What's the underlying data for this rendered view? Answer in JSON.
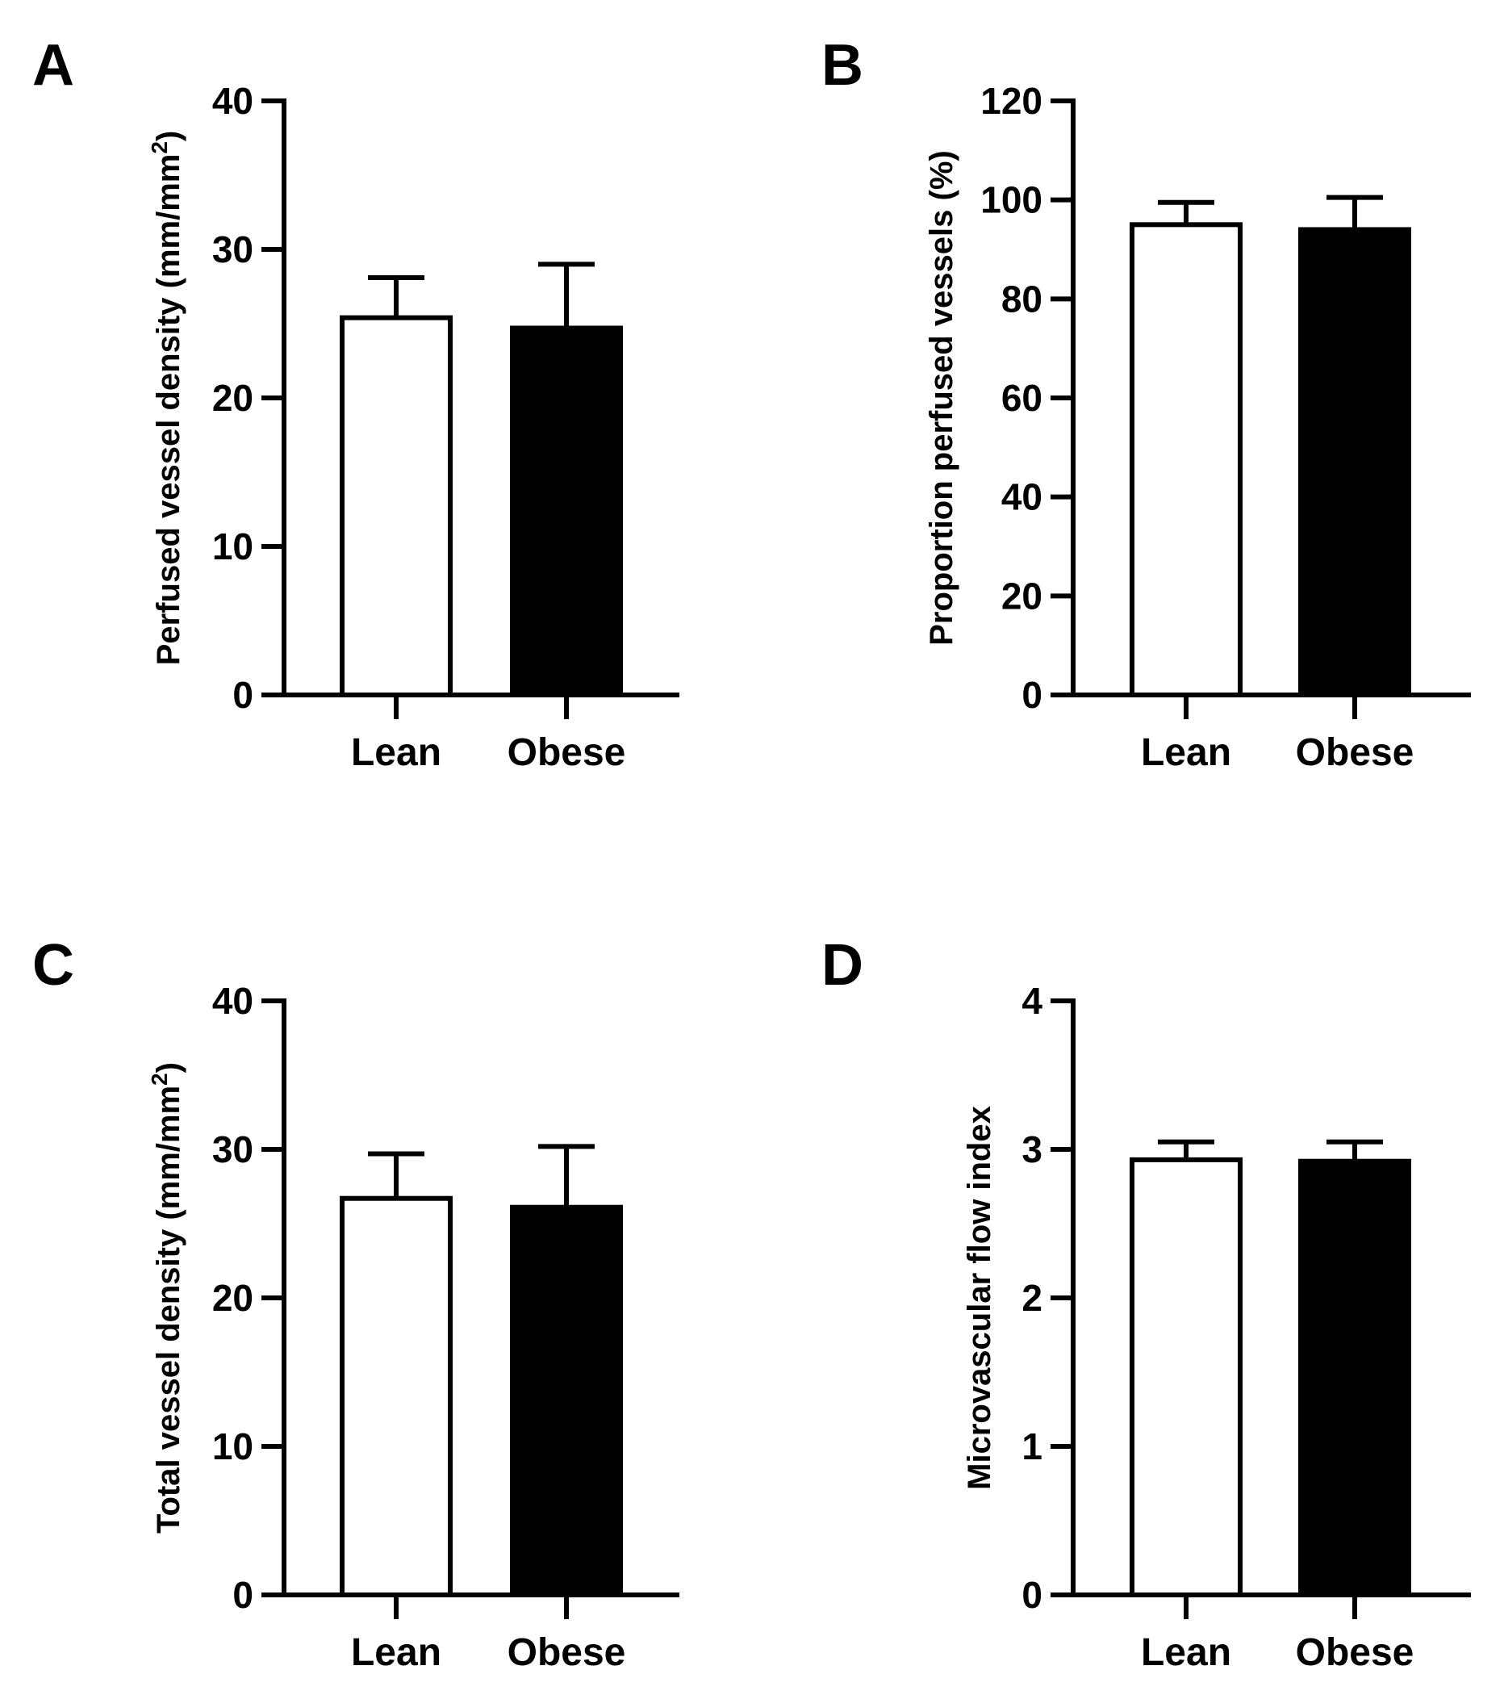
{
  "figure": {
    "panels": [
      {
        "letter": "A",
        "chart_data": {
          "type": "bar",
          "title": "",
          "categories": [
            "Lean",
            "Obese"
          ],
          "values": [
            25.4,
            24.7
          ],
          "errors": [
            2.7,
            4.3
          ],
          "colors": [
            "#ffffff",
            "#000000"
          ],
          "xlabel": "",
          "ylabel": "Perfused vessel density (mm/mm²)",
          "ylabel_main": "Perfused vessel density (mm/mm",
          "ylabel_sup": "2",
          "ylabel_tail": ")",
          "ylim": [
            0,
            40
          ],
          "yticks": [
            "0",
            "10",
            "20",
            "30",
            "40"
          ],
          "grid": false,
          "legend": "none"
        }
      },
      {
        "letter": "B",
        "chart_data": {
          "type": "bar",
          "title": "",
          "categories": [
            "Lean",
            "Obese"
          ],
          "values": [
            95,
            94
          ],
          "errors": [
            4.5,
            6.5
          ],
          "colors": [
            "#ffffff",
            "#000000"
          ],
          "xlabel": "",
          "ylabel": "Proportion perfused vessels (%)",
          "ylabel_main": "Proportion perfused vessels (%)",
          "ylabel_sup": "",
          "ylabel_tail": "",
          "ylim": [
            0,
            120
          ],
          "yticks": [
            "0",
            "20",
            "40",
            "60",
            "80",
            "100",
            "120"
          ],
          "grid": false,
          "legend": "none"
        }
      },
      {
        "letter": "C",
        "chart_data": {
          "type": "bar",
          "title": "",
          "categories": [
            "Lean",
            "Obese"
          ],
          "values": [
            26.7,
            26.1
          ],
          "errors": [
            3.0,
            4.1
          ],
          "colors": [
            "#ffffff",
            "#000000"
          ],
          "xlabel": "",
          "ylabel": "Total vessel density (mm/mm²)",
          "ylabel_main": "Total vessel density (mm/mm",
          "ylabel_sup": "2",
          "ylabel_tail": ")",
          "ylim": [
            0,
            40
          ],
          "yticks": [
            "0",
            "10",
            "20",
            "30",
            "40"
          ],
          "grid": false,
          "legend": "none"
        }
      },
      {
        "letter": "D",
        "chart_data": {
          "type": "bar",
          "title": "",
          "categories": [
            "Lean",
            "Obese"
          ],
          "values": [
            2.93,
            2.92
          ],
          "errors": [
            0.12,
            0.13
          ],
          "colors": [
            "#ffffff",
            "#000000"
          ],
          "xlabel": "",
          "ylabel": "Microvascular flow index",
          "ylabel_main": "Microvascular flow index",
          "ylabel_sup": "",
          "ylabel_tail": "",
          "ylim": [
            0,
            4
          ],
          "yticks": [
            "0",
            "1",
            "2",
            "3",
            "4"
          ],
          "grid": false,
          "legend": "none"
        }
      }
    ]
  }
}
